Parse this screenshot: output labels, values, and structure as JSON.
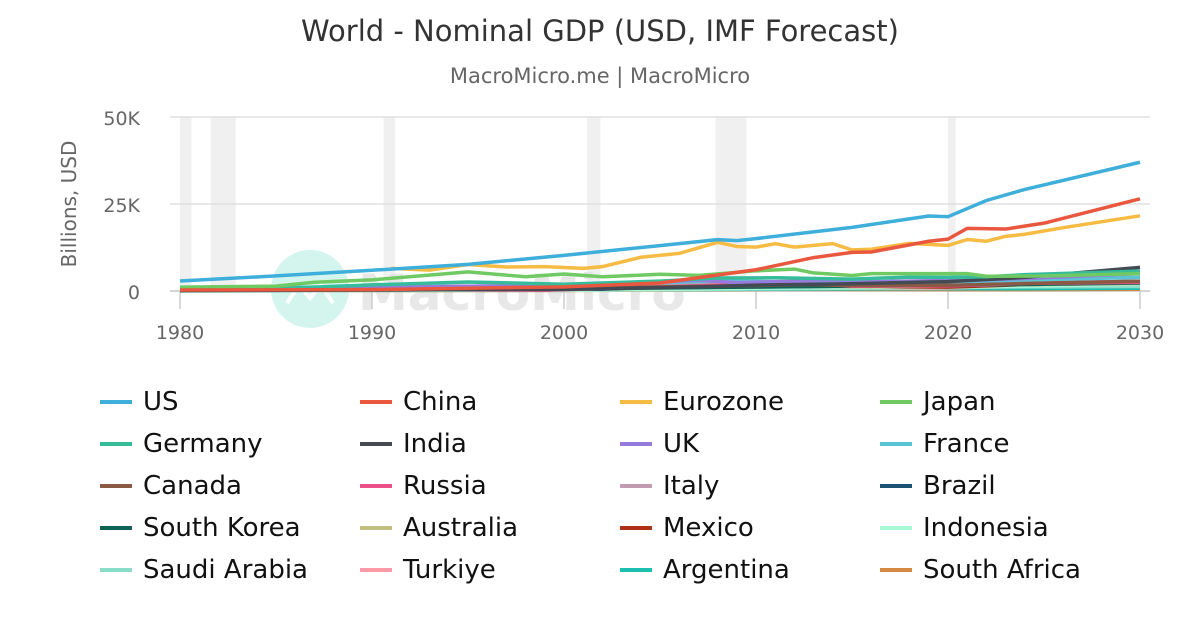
{
  "chart_data": {
    "type": "line",
    "title": "World - Nominal GDP (USD, IMF Forecast)",
    "subtitle": "MacroMicro.me | MacroMicro",
    "ylabel": "Billions, USD",
    "xlabel": "",
    "xlim": [
      1980,
      2030
    ],
    "ylim": [
      0,
      50000
    ],
    "x_ticks": [
      "1980",
      "1990",
      "2000",
      "2010",
      "2020",
      "2030"
    ],
    "y_ticks": [
      {
        "value": 0,
        "label": "0"
      },
      {
        "value": 25000,
        "label": "25K"
      },
      {
        "value": 50000,
        "label": "50K"
      }
    ],
    "grid": true,
    "legend_position": "bottom",
    "watermark": "MacroMicro",
    "shaded_periods": [
      [
        1980.0,
        1980.6
      ],
      [
        1981.6,
        1982.9
      ],
      [
        1990.6,
        1991.2
      ],
      [
        2001.2,
        2001.9
      ],
      [
        2007.9,
        2009.5
      ],
      [
        2020.0,
        2020.4
      ]
    ],
    "series": [
      {
        "name": "US",
        "color": "#3eaedb",
        "points": [
          [
            1980,
            2857
          ],
          [
            1985,
            4339
          ],
          [
            1990,
            5963
          ],
          [
            1995,
            7640
          ],
          [
            2000,
            10251
          ],
          [
            2005,
            13040
          ],
          [
            2008,
            14770
          ],
          [
            2009,
            14478
          ],
          [
            2010,
            15049
          ],
          [
            2015,
            18295
          ],
          [
            2019,
            21540
          ],
          [
            2020,
            21354
          ],
          [
            2022,
            26007
          ],
          [
            2024,
            29185
          ],
          [
            2030,
            37000
          ]
        ]
      },
      {
        "name": "China",
        "color": "#e9573f",
        "points": [
          [
            1980,
            300
          ],
          [
            1990,
            400
          ],
          [
            2000,
            1200
          ],
          [
            2005,
            2300
          ],
          [
            2008,
            4600
          ],
          [
            2010,
            6100
          ],
          [
            2013,
            9600
          ],
          [
            2015,
            11100
          ],
          [
            2016,
            11200
          ],
          [
            2019,
            14300
          ],
          [
            2020,
            14900
          ],
          [
            2021,
            18000
          ],
          [
            2023,
            17800
          ],
          [
            2025,
            19500
          ],
          [
            2030,
            26500
          ]
        ]
      },
      {
        "name": "Eurozone",
        "color": "#f6bb42",
        "points": [
          [
            1991,
            6500
          ],
          [
            1993,
            6000
          ],
          [
            1995,
            7600
          ],
          [
            1997,
            6900
          ],
          [
            1999,
            7000
          ],
          [
            2001,
            6500
          ],
          [
            2002,
            7000
          ],
          [
            2004,
            9700
          ],
          [
            2006,
            10800
          ],
          [
            2008,
            14000
          ],
          [
            2009,
            12800
          ],
          [
            2010,
            12600
          ],
          [
            2011,
            13600
          ],
          [
            2012,
            12600
          ],
          [
            2014,
            13600
          ],
          [
            2015,
            11800
          ],
          [
            2016,
            12000
          ],
          [
            2018,
            13700
          ],
          [
            2020,
            13100
          ],
          [
            2021,
            14800
          ],
          [
            2022,
            14300
          ],
          [
            2023,
            15700
          ],
          [
            2024,
            16300
          ],
          [
            2026,
            18200
          ],
          [
            2030,
            21600
          ]
        ]
      },
      {
        "name": "Japan",
        "color": "#70ca63",
        "points": [
          [
            1980,
            1100
          ],
          [
            1985,
            1400
          ],
          [
            1987,
            2500
          ],
          [
            1990,
            3200
          ],
          [
            1995,
            5500
          ],
          [
            1998,
            4100
          ],
          [
            2000,
            4900
          ],
          [
            2002,
            4100
          ],
          [
            2005,
            4800
          ],
          [
            2007,
            4500
          ],
          [
            2010,
            5800
          ],
          [
            2012,
            6300
          ],
          [
            2013,
            5200
          ],
          [
            2015,
            4450
          ],
          [
            2016,
            5000
          ],
          [
            2021,
            5000
          ],
          [
            2022,
            4250
          ],
          [
            2025,
            4300
          ],
          [
            2030,
            5000
          ]
        ]
      },
      {
        "name": "Germany",
        "color": "#37bc9b",
        "points": [
          [
            1980,
            950
          ],
          [
            1985,
            700
          ],
          [
            1990,
            1770
          ],
          [
            1995,
            2600
          ],
          [
            2000,
            1950
          ],
          [
            2005,
            2850
          ],
          [
            2008,
            3750
          ],
          [
            2011,
            3800
          ],
          [
            2015,
            3400
          ],
          [
            2018,
            4000
          ],
          [
            2020,
            3900
          ],
          [
            2022,
            4100
          ],
          [
            2024,
            4700
          ],
          [
            2030,
            5700
          ]
        ]
      },
      {
        "name": "India",
        "color": "#434a54",
        "points": [
          [
            1980,
            190
          ],
          [
            1990,
            320
          ],
          [
            2000,
            470
          ],
          [
            2007,
            1200
          ],
          [
            2010,
            1700
          ],
          [
            2015,
            2100
          ],
          [
            2020,
            2700
          ],
          [
            2024,
            3900
          ],
          [
            2030,
            6800
          ]
        ]
      },
      {
        "name": "UK",
        "color": "#967adc",
        "points": [
          [
            1980,
            600
          ],
          [
            1990,
            1100
          ],
          [
            2000,
            1660
          ],
          [
            2007,
            3100
          ],
          [
            2009,
            2400
          ],
          [
            2014,
            3100
          ],
          [
            2016,
            2700
          ],
          [
            2021,
            3100
          ],
          [
            2024,
            3600
          ],
          [
            2030,
            5000
          ]
        ]
      },
      {
        "name": "France",
        "color": "#5bc4d4",
        "points": [
          [
            1980,
            700
          ],
          [
            1990,
            1270
          ],
          [
            2000,
            1360
          ],
          [
            2008,
            2900
          ],
          [
            2015,
            2400
          ],
          [
            2020,
            2650
          ],
          [
            2024,
            3150
          ],
          [
            2030,
            3900
          ]
        ]
      },
      {
        "name": "Canada",
        "color": "#8a5a44",
        "points": [
          [
            1980,
            270
          ],
          [
            1990,
            600
          ],
          [
            2000,
            740
          ],
          [
            2013,
            1850
          ],
          [
            2015,
            1550
          ],
          [
            2020,
            1650
          ],
          [
            2024,
            2200
          ],
          [
            2030,
            2800
          ]
        ]
      },
      {
        "name": "Russia",
        "color": "#ec5089",
        "points": [
          [
            1992,
            460
          ],
          [
            1999,
            200
          ],
          [
            2008,
            1660
          ],
          [
            2013,
            2300
          ],
          [
            2015,
            1360
          ],
          [
            2020,
            1490
          ],
          [
            2024,
            2200
          ],
          [
            2030,
            2500
          ]
        ]
      },
      {
        "name": "Italy",
        "color": "#c39bb0",
        "points": [
          [
            1980,
            480
          ],
          [
            1990,
            1180
          ],
          [
            2000,
            1140
          ],
          [
            2008,
            2400
          ],
          [
            2015,
            1840
          ],
          [
            2020,
            1900
          ],
          [
            2024,
            2370
          ],
          [
            2030,
            2800
          ]
        ]
      },
      {
        "name": "Brazil",
        "color": "#1d5275",
        "points": [
          [
            1980,
            240
          ],
          [
            1990,
            460
          ],
          [
            1997,
            880
          ],
          [
            2002,
            510
          ],
          [
            2011,
            2620
          ],
          [
            2015,
            1800
          ],
          [
            2020,
            1480
          ],
          [
            2024,
            2170
          ],
          [
            2030,
            2800
          ]
        ]
      },
      {
        "name": "South Korea",
        "color": "#0f6355",
        "points": [
          [
            1980,
            65
          ],
          [
            1990,
            280
          ],
          [
            2000,
            580
          ],
          [
            2010,
            1140
          ],
          [
            2020,
            1640
          ],
          [
            2024,
            1870
          ],
          [
            2030,
            2300
          ]
        ]
      },
      {
        "name": "Australia",
        "color": "#c0c080",
        "points": [
          [
            1980,
            160
          ],
          [
            1990,
            320
          ],
          [
            2000,
            420
          ],
          [
            2012,
            1570
          ],
          [
            2016,
            1200
          ],
          [
            2022,
            1720
          ],
          [
            2030,
            2200
          ]
        ]
      },
      {
        "name": "Mexico",
        "color": "#ad3017",
        "points": [
          [
            1980,
            230
          ],
          [
            1990,
            310
          ],
          [
            2000,
            740
          ],
          [
            2014,
            1350
          ],
          [
            2020,
            1120
          ],
          [
            2024,
            1850
          ],
          [
            2030,
            2300
          ]
        ]
      },
      {
        "name": "Indonesia",
        "color": "#a8f8d8",
        "points": [
          [
            1980,
            100
          ],
          [
            1997,
            230
          ],
          [
            2000,
            180
          ],
          [
            2012,
            920
          ],
          [
            2020,
            1060
          ],
          [
            2024,
            1400
          ],
          [
            2030,
            2000
          ]
        ]
      },
      {
        "name": "Saudi Arabia",
        "color": "#88dcc8",
        "points": [
          [
            1980,
            160
          ],
          [
            2000,
            190
          ],
          [
            2014,
            760
          ],
          [
            2022,
            1100
          ],
          [
            2030,
            1300
          ]
        ]
      },
      {
        "name": "Turkiye",
        "color": "#fc9aa8",
        "points": [
          [
            1980,
            90
          ],
          [
            2000,
            270
          ],
          [
            2013,
            950
          ],
          [
            2019,
            760
          ],
          [
            2024,
            1340
          ],
          [
            2030,
            2000
          ]
        ]
      },
      {
        "name": "Argentina",
        "color": "#1dc0b0",
        "points": [
          [
            1980,
            80
          ],
          [
            2000,
            280
          ],
          [
            2017,
            640
          ],
          [
            2024,
            630
          ],
          [
            2030,
            800
          ]
        ]
      },
      {
        "name": "South Africa",
        "color": "#d68a44",
        "points": [
          [
            1980,
            90
          ],
          [
            2000,
            150
          ],
          [
            2011,
            460
          ],
          [
            2024,
            400
          ],
          [
            2030,
            500
          ]
        ]
      }
    ]
  }
}
